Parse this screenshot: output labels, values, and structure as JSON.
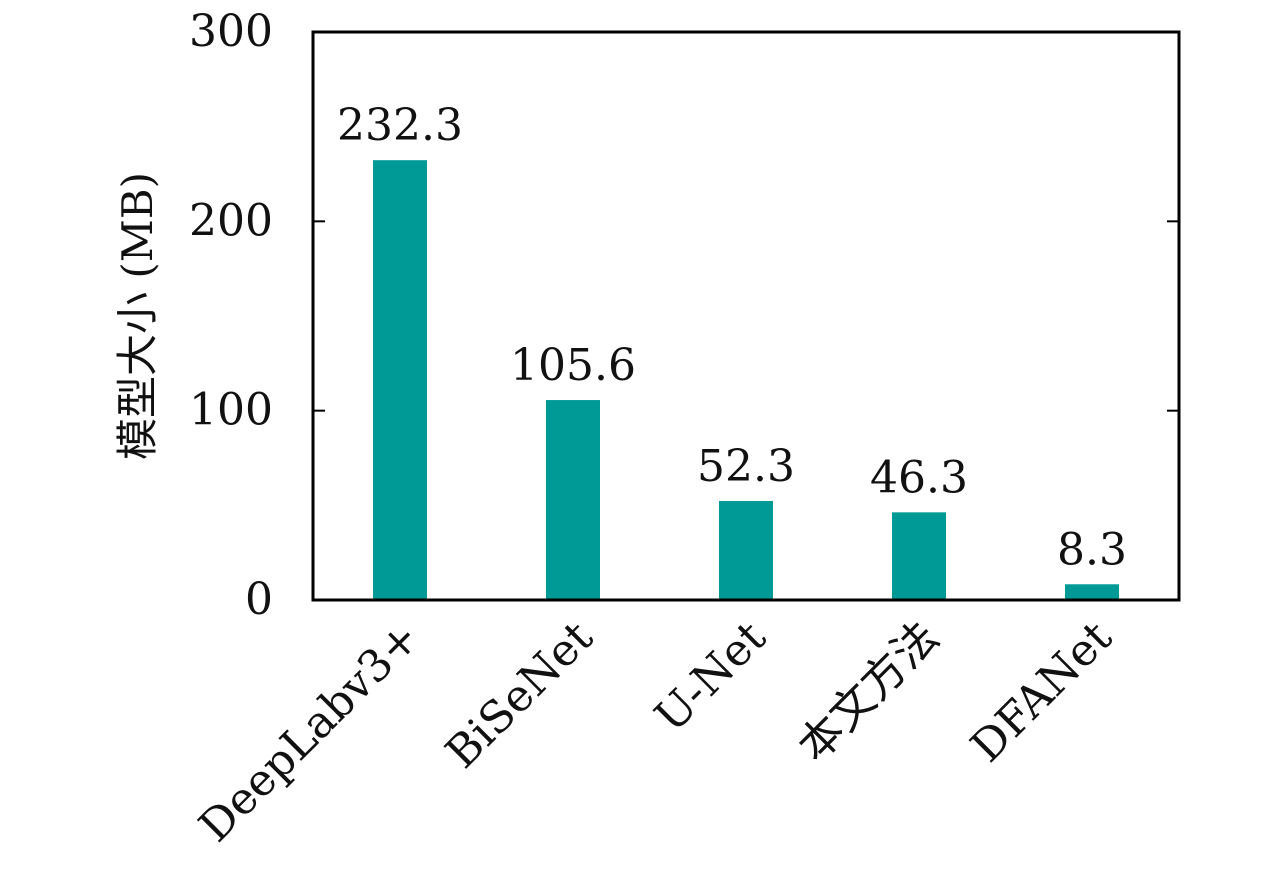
{
  "chart_data": {
    "type": "bar",
    "title": "",
    "xlabel": "",
    "ylabel": "模型大小 (MB)",
    "categories": [
      "DeepLabv3+",
      "BiSeNet",
      "U-Net",
      "本文方法",
      "DFANet"
    ],
    "values": [
      232.3,
      105.6,
      52.3,
      46.3,
      8.3
    ],
    "data_labels": [
      "232.3",
      "105.6",
      "52.3",
      "46.3",
      "8.3"
    ],
    "ylim": [
      0,
      300
    ],
    "yticks": [
      0,
      100,
      200,
      300
    ],
    "ytick_labels": [
      "0",
      "100",
      "200",
      "300"
    ],
    "grid": false,
    "bar_color": "#009a96"
  }
}
